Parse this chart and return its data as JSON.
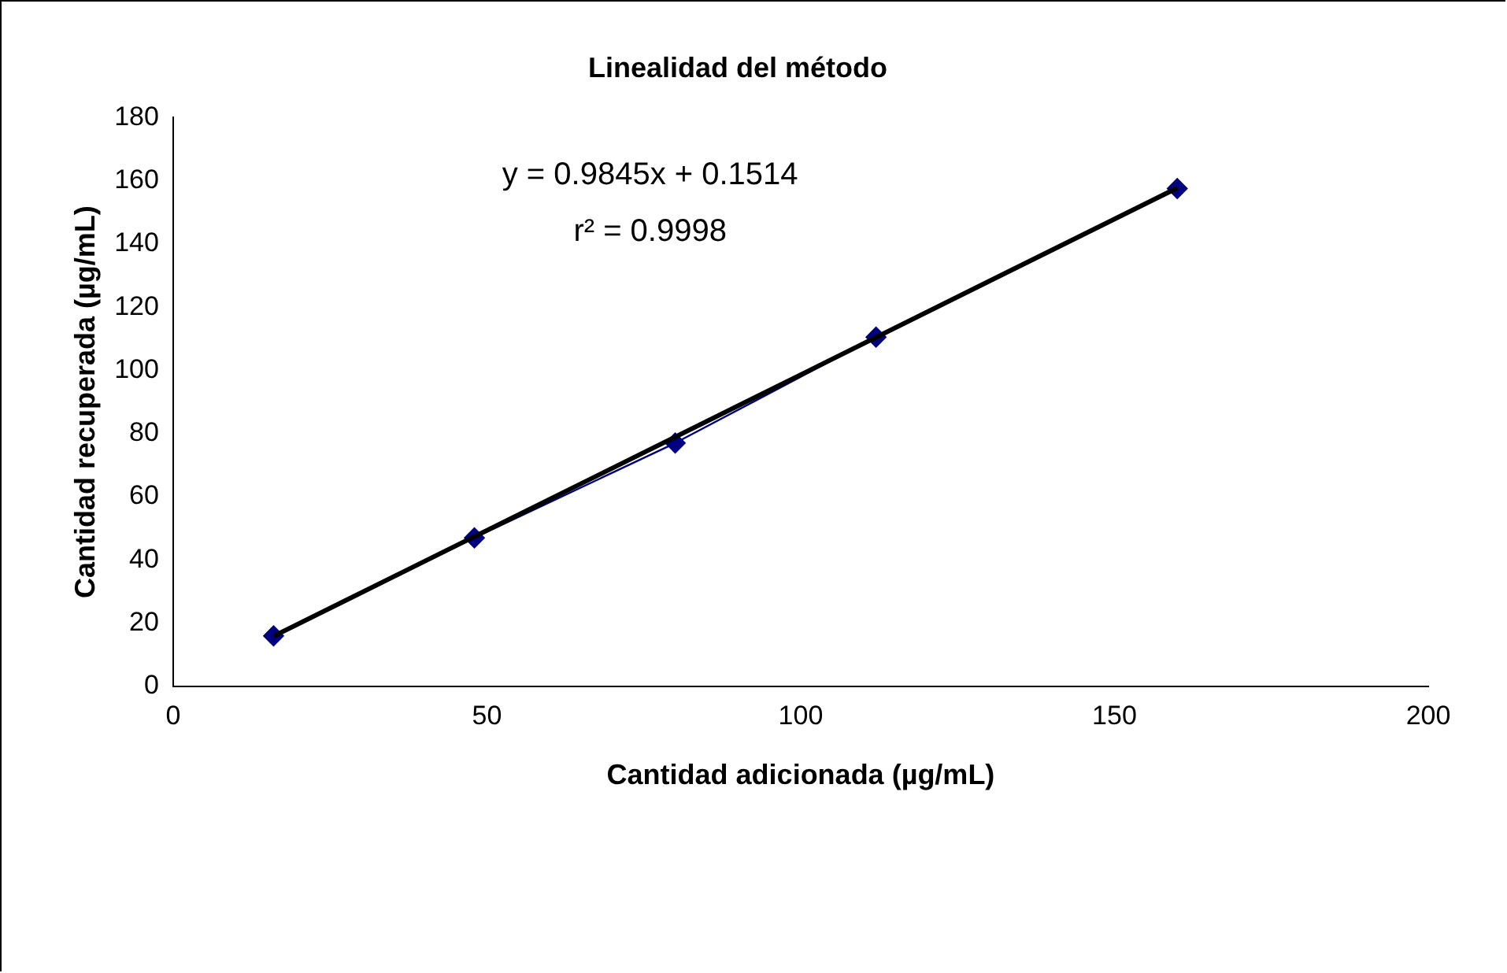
{
  "chart_data": {
    "type": "scatter",
    "title": "Linealidad del método",
    "xlabel": "Cantidad adicionada (µg/mL)",
    "ylabel": "Cantidad recuperada (µg/mL)",
    "annotations": [
      "y = 0.9845x + 0.1514",
      "r² = 0.9998"
    ],
    "xlim": [
      0,
      200
    ],
    "xticks": [
      0,
      50,
      100,
      150,
      200
    ],
    "ylim": [
      0,
      180
    ],
    "yticks": [
      0,
      20,
      40,
      60,
      80,
      100,
      120,
      140,
      160,
      180
    ],
    "grid": false,
    "legend": false,
    "marker": "diamond",
    "series": [
      {
        "type": "line",
        "color": "#000080",
        "x": [
          16,
          48,
          80,
          112,
          160
        ],
        "values": [
          16,
          47,
          77,
          110.5,
          157.5
        ]
      },
      {
        "type": "line",
        "color": "#000000",
        "x": [
          16,
          160
        ],
        "values": [
          15.9,
          157.7
        ],
        "marker": "none"
      }
    ]
  }
}
